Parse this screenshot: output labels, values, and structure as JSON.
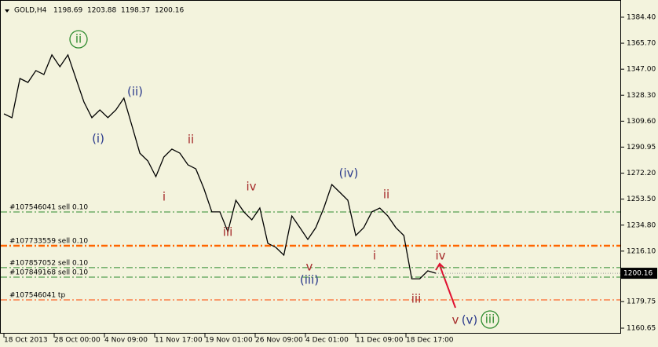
{
  "chart_data": {
    "type": "line",
    "symbol": "GOLD,H4",
    "ohlc": [
      1198.69,
      1203.88,
      1198.37,
      1200.16
    ],
    "last_price": 1200.16,
    "color": "#000000",
    "values": [
      1314.9,
      1312.1,
      1340.3,
      1337.5,
      1346.0,
      1343.2,
      1357.3,
      1348.8,
      1357.3,
      1340.3,
      1323.4,
      1312.1,
      1317.7,
      1312.1,
      1317.7,
      1326.2,
      1306.4,
      1286.6,
      1281.0,
      1269.7,
      1283.8,
      1289.5,
      1286.6,
      1278.2,
      1275.3,
      1261.2,
      1244.3,
      1244.3,
      1230.1,
      1252.7,
      1244.3,
      1238.6,
      1247.1,
      1221.7,
      1218.8,
      1213.2,
      1241.4,
      1233.0,
      1224.5,
      1233.0,
      1247.1,
      1264.0,
      1258.4,
      1252.7,
      1227.3,
      1233.0,
      1244.3,
      1247.1,
      1241.4,
      1233.0,
      1227.3,
      1196.2,
      1196.2,
      1201.9,
      1200.2
    ],
    "x_labels": [
      "18 Oct 2013",
      "28 Oct 00:00",
      "4 Nov 09:00",
      "11 Nov 17:00",
      "19 Nov 01:00",
      "26 Nov 09:00",
      "4 Dec 01:00",
      "11 Dec 09:00",
      "18 Dec 17:00"
    ],
    "ylim": [
      1156.7,
      1396.8
    ],
    "yticks": [
      {
        "value": 1384.4,
        "label": "1384.40"
      },
      {
        "value": 1365.7,
        "label": "1365.70"
      },
      {
        "value": 1347.0,
        "label": "1347.00"
      },
      {
        "value": 1328.3,
        "label": "1328.30"
      },
      {
        "value": 1309.6,
        "label": "1309.60"
      },
      {
        "value": 1290.95,
        "label": "1290.95"
      },
      {
        "value": 1272.2,
        "label": "1272.20"
      },
      {
        "value": 1253.5,
        "label": "1253.50"
      },
      {
        "value": 1234.8,
        "label": "1234.80"
      },
      {
        "value": 1216.1,
        "label": "1216.10"
      },
      {
        "value": 1179.75,
        "label": "1179.75"
      },
      {
        "value": 1160.65,
        "label": "1160.65"
      }
    ],
    "levels": [
      {
        "label": "#107546041 sell 0.10",
        "value": 1244.3,
        "color": "#2e8b2e",
        "thick": false
      },
      {
        "label": "#107733559 sell 0.10",
        "value": 1220.0,
        "color": "#ff6600",
        "thick": true
      },
      {
        "label": "#107857052 sell 0.10",
        "value": 1204.2,
        "color": "#2e8b2e",
        "thick": false
      },
      {
        "label": "#107849168 sell 0.10",
        "value": 1197.4,
        "color": "#2e8b2e",
        "thick": false
      },
      {
        "label": "#107546041 tp",
        "value": 1181.0,
        "color": "#ff4500",
        "thick": false
      }
    ],
    "annotations": [
      {
        "text": "ii",
        "color": "#2e8b2e",
        "circled": true
      },
      {
        "text": "(ii)",
        "color": "#2b3a8c",
        "circled": false
      },
      {
        "text": "(i)",
        "color": "#2b3a8c",
        "circled": false
      },
      {
        "text": "ii",
        "color": "#a52a2a",
        "circled": false
      },
      {
        "text": "i",
        "color": "#a52a2a",
        "circled": false
      },
      {
        "text": "iv",
        "color": "#a52a2a",
        "circled": false
      },
      {
        "text": "iii",
        "color": "#a52a2a",
        "circled": false
      },
      {
        "text": "(iv)",
        "color": "#2b3a8c",
        "circled": false
      },
      {
        "text": "ii",
        "color": "#a52a2a",
        "circled": false
      },
      {
        "text": "i",
        "color": "#a52a2a",
        "circled": false
      },
      {
        "text": "v",
        "color": "#a52a2a",
        "circled": false
      },
      {
        "text": "(iii)",
        "color": "#2b3a8c",
        "circled": false
      },
      {
        "text": "iv",
        "color": "#a52a2a",
        "circled": false
      },
      {
        "text": "iii",
        "color": "#a52a2a",
        "circled": false
      },
      {
        "text": "v",
        "color": "#a52a2a",
        "circled": false
      },
      {
        "text": "(v)",
        "color": "#2b3a8c",
        "circled": false
      },
      {
        "text": "iii",
        "color": "#2e8b2e",
        "circled": true
      }
    ]
  }
}
